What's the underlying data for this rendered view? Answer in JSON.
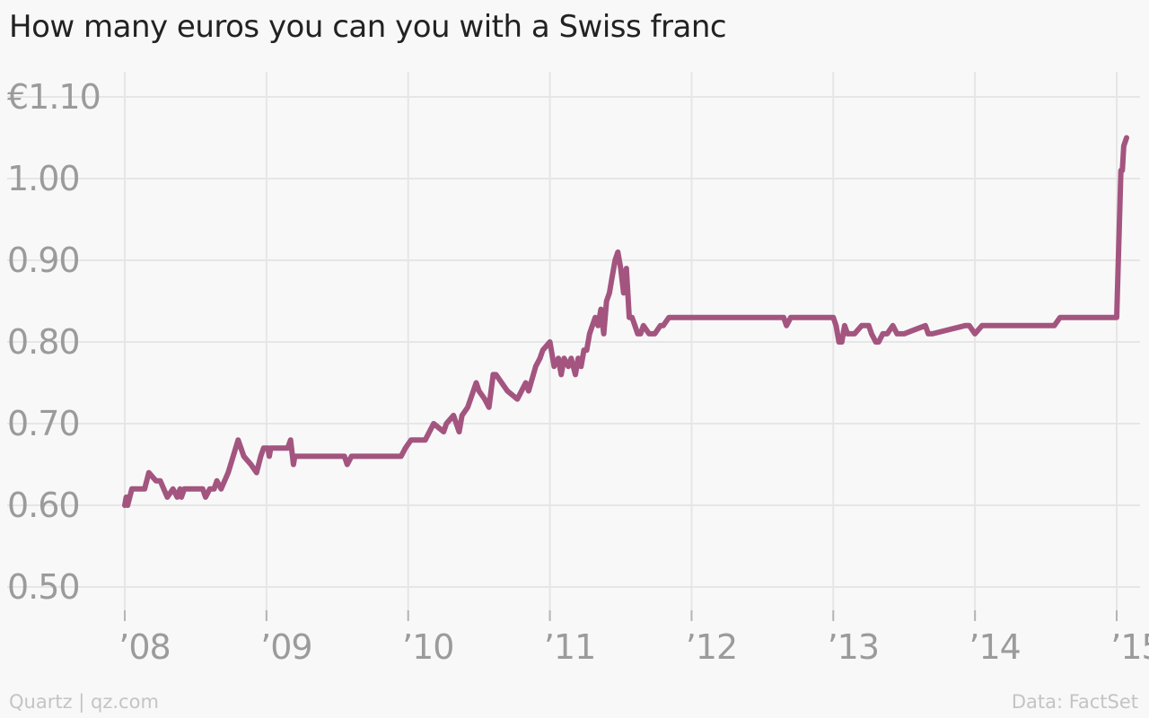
{
  "chart_data": {
    "type": "line",
    "title": "How many euros you can you with a Swiss franc",
    "xlabel": "",
    "ylabel": "",
    "xlim": [
      2008.0,
      2015.08
    ],
    "ylim": [
      0.5,
      1.1
    ],
    "x_ticks": [
      {
        "value": 2008,
        "label": "’08"
      },
      {
        "value": 2009,
        "label": "’09"
      },
      {
        "value": 2010,
        "label": "’10"
      },
      {
        "value": 2011,
        "label": "’11"
      },
      {
        "value": 2012,
        "label": "’12"
      },
      {
        "value": 2013,
        "label": "’13"
      },
      {
        "value": 2014,
        "label": "’14"
      },
      {
        "value": 2015,
        "label": "’15"
      }
    ],
    "y_ticks": [
      {
        "value": 1.1,
        "label": "€1.10"
      },
      {
        "value": 1.0,
        "label": "1.00"
      },
      {
        "value": 0.9,
        "label": "0.90"
      },
      {
        "value": 0.8,
        "label": "0.80"
      },
      {
        "value": 0.7,
        "label": "0.70"
      },
      {
        "value": 0.6,
        "label": "0.60"
      },
      {
        "value": 0.5,
        "label": "0.50"
      }
    ],
    "grid": true,
    "legend": "none",
    "series": [
      {
        "color": "#a3557f",
        "x": [
          2008.0,
          2008.01,
          2008.02,
          2008.05,
          2008.14,
          2008.17,
          2008.22,
          2008.25,
          2008.3,
          2008.34,
          2008.37,
          2008.39,
          2008.4,
          2008.42,
          2008.55,
          2008.57,
          2008.6,
          2008.63,
          2008.65,
          2008.68,
          2008.73,
          2008.8,
          2008.84,
          2008.89,
          2008.93,
          2008.96,
          2008.98,
          2009.01,
          2009.02,
          2009.03,
          2009.04,
          2009.15,
          2009.17,
          2009.19,
          2009.2,
          2009.23,
          2009.3,
          2009.55,
          2009.57,
          2009.6,
          2009.7,
          2009.95,
          2009.98,
          2010.02,
          2010.12,
          2010.18,
          2010.25,
          2010.27,
          2010.32,
          2010.36,
          2010.38,
          2010.42,
          2010.48,
          2010.5,
          2010.54,
          2010.57,
          2010.6,
          2010.62,
          2010.7,
          2010.77,
          2010.8,
          2010.83,
          2010.85,
          2010.9,
          2010.93,
          2010.95,
          2011.0,
          2011.03,
          2011.06,
          2011.08,
          2011.1,
          2011.13,
          2011.15,
          2011.18,
          2011.2,
          2011.22,
          2011.24,
          2011.26,
          2011.28,
          2011.3,
          2011.32,
          2011.34,
          2011.36,
          2011.38,
          2011.4,
          2011.42,
          2011.44,
          2011.46,
          2011.48,
          2011.5,
          2011.52,
          2011.54,
          2011.56,
          2011.58,
          2011.6,
          2011.62,
          2011.64,
          2011.66,
          2011.7,
          2011.74,
          2011.78,
          2011.8,
          2011.84,
          2011.9,
          2011.95,
          2011.98,
          2012.03,
          2012.65,
          2012.67,
          2012.7,
          2013.0,
          2013.02,
          2013.04,
          2013.06,
          2013.08,
          2013.1,
          2013.15,
          2013.2,
          2013.25,
          2013.27,
          2013.3,
          2013.32,
          2013.35,
          2013.38,
          2013.42,
          2013.45,
          2013.47,
          2013.5,
          2013.65,
          2013.67,
          2013.7,
          2013.93,
          2013.96,
          2014.0,
          2014.05,
          2014.56,
          2014.6,
          2015.0,
          2015.03,
          2015.04,
          2015.05,
          2015.07
        ],
        "y": [
          0.6,
          0.61,
          0.6,
          0.62,
          0.62,
          0.64,
          0.63,
          0.63,
          0.61,
          0.62,
          0.61,
          0.62,
          0.61,
          0.62,
          0.62,
          0.61,
          0.62,
          0.62,
          0.63,
          0.62,
          0.64,
          0.68,
          0.66,
          0.65,
          0.64,
          0.66,
          0.67,
          0.67,
          0.66,
          0.67,
          0.67,
          0.67,
          0.68,
          0.65,
          0.66,
          0.66,
          0.66,
          0.66,
          0.65,
          0.66,
          0.66,
          0.66,
          0.67,
          0.68,
          0.68,
          0.7,
          0.69,
          0.7,
          0.71,
          0.69,
          0.71,
          0.72,
          0.75,
          0.74,
          0.73,
          0.72,
          0.76,
          0.76,
          0.74,
          0.73,
          0.74,
          0.75,
          0.74,
          0.77,
          0.78,
          0.79,
          0.8,
          0.77,
          0.78,
          0.76,
          0.78,
          0.77,
          0.78,
          0.76,
          0.78,
          0.77,
          0.79,
          0.79,
          0.81,
          0.82,
          0.83,
          0.82,
          0.84,
          0.81,
          0.85,
          0.86,
          0.88,
          0.9,
          0.91,
          0.89,
          0.86,
          0.89,
          0.83,
          0.83,
          0.82,
          0.81,
          0.81,
          0.82,
          0.81,
          0.81,
          0.82,
          0.82,
          0.83,
          0.83,
          0.83,
          0.83,
          0.83,
          0.83,
          0.82,
          0.83,
          0.83,
          0.82,
          0.8,
          0.8,
          0.82,
          0.81,
          0.81,
          0.82,
          0.82,
          0.81,
          0.8,
          0.8,
          0.81,
          0.81,
          0.82,
          0.81,
          0.81,
          0.81,
          0.82,
          0.81,
          0.81,
          0.82,
          0.82,
          0.81,
          0.82,
          0.82,
          0.83,
          0.83,
          1.01,
          1.01,
          1.04,
          1.05
        ]
      }
    ]
  },
  "footer": {
    "credit": "Quartz | qz.com",
    "source": "Data: FactSet"
  }
}
